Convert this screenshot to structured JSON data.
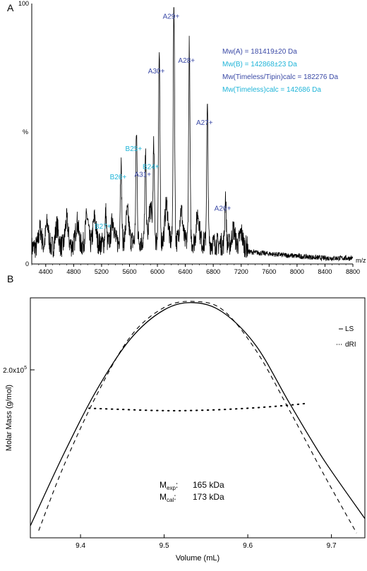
{
  "colors": {
    "A": "#3b4aa6",
    "B": "#1fb4d8",
    "ink": "#000000"
  },
  "chart_data": [
    {
      "panel_label": "A",
      "type": "line",
      "xlim": [
        4200,
        8800
      ],
      "ylim": [
        0,
        100
      ],
      "xticks": [
        4400,
        4800,
        5200,
        5600,
        6000,
        6400,
        6800,
        7200,
        7600,
        8000,
        8400,
        8800
      ],
      "yticks": [
        0,
        100
      ],
      "ylabel": "%",
      "xlabel": "m/z",
      "peaks": [
        {
          "label": "A26+",
          "x": 6975,
          "y": 19,
          "series": "A"
        },
        {
          "label": "A27+",
          "x": 6715,
          "y": 52,
          "series": "A"
        },
        {
          "label": "A28+",
          "x": 6457,
          "y": 76,
          "series": "A"
        },
        {
          "label": "A29+",
          "x": 6236,
          "y": 93,
          "series": "A"
        },
        {
          "label": "A30+",
          "x": 6026,
          "y": 72,
          "series": "A"
        },
        {
          "label": "A31+",
          "x": 5830,
          "y": 32,
          "series": "A"
        },
        {
          "label": "B24+",
          "x": 5947,
          "y": 35,
          "series": "B"
        },
        {
          "label": "B25+",
          "x": 5700,
          "y": 42,
          "series": "B"
        },
        {
          "label": "B26+",
          "x": 5478,
          "y": 31,
          "series": "B"
        },
        {
          "label": "B27+",
          "x": 5260,
          "y": 12,
          "series": "B"
        }
      ],
      "annotations": [
        {
          "text": "Mw(A) = 181419±20 Da",
          "series": "A"
        },
        {
          "text": "Mw(B) = 142868±23 Da",
          "series": "B"
        },
        {
          "text": "Mw(Timeless/Tipin)calc = 182276 Da",
          "series": "A"
        },
        {
          "text": "Mw(Timeless)calc = 142686 Da",
          "series": "B"
        }
      ]
    },
    {
      "panel_label": "B",
      "type": "line",
      "xlabel": "Volume (mL)",
      "ylabel": "Molar Mass (g/mol)",
      "xlim": [
        9.34,
        9.74
      ],
      "xticks": [
        9.4,
        9.5,
        9.6,
        9.7
      ],
      "ylim": [
        0,
        1
      ],
      "ytick_label": {
        "value": 0.7,
        "base": "2.0x10",
        "exp": "5"
      },
      "series": [
        {
          "name": "LS",
          "style": "solid",
          "x": [
            9.34,
            9.38,
            9.42,
            9.46,
            9.5,
            9.535,
            9.57,
            9.61,
            9.65,
            9.69,
            9.74
          ],
          "y": [
            0.05,
            0.35,
            0.62,
            0.83,
            0.95,
            0.98,
            0.94,
            0.8,
            0.56,
            0.33,
            0.08
          ]
        },
        {
          "name": "dRI",
          "style": "dotted",
          "x": [
            9.41,
            9.45,
            9.5,
            9.55,
            9.6,
            9.64,
            9.67
          ],
          "y": [
            0.54,
            0.535,
            0.53,
            0.532,
            0.54,
            0.55,
            0.56
          ]
        },
        {
          "name": "",
          "style": "dashed",
          "x": [
            9.35,
            9.38,
            9.42,
            9.46,
            9.5,
            9.535,
            9.57,
            9.61,
            9.65,
            9.69,
            9.73
          ],
          "y": [
            0.03,
            0.3,
            0.6,
            0.84,
            0.96,
            0.985,
            0.95,
            0.78,
            0.53,
            0.27,
            0.02
          ]
        }
      ],
      "legend": [
        "LS",
        "dRI"
      ],
      "legend_position": "top-right",
      "masses": [
        {
          "symbol": "M",
          "sub": "exp",
          "value": "165 kDa"
        },
        {
          "symbol": "M",
          "sub": "cal",
          "value": "173 kDa"
        }
      ]
    }
  ]
}
